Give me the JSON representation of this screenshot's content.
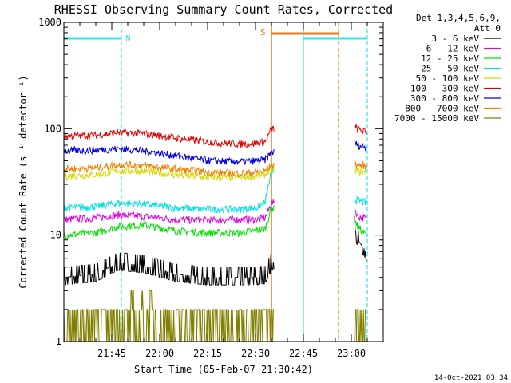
{
  "title": "RHESSI Observing Summary Count Rates, Corrected",
  "footer_date": "14-Oct-2021 03:34",
  "colors": {
    "night_marker": "#33e6ee",
    "saa_marker": "#ee7a14"
  },
  "chart_data": {
    "type": "line",
    "title": "RHESSI Observing Summary Count Rates, Corrected",
    "xlabel": "Start Time (05-Feb-07 21:30:42)",
    "ylabel": "Corrected Count Rate (s⁻¹ detector⁻¹)",
    "y_scale": "log",
    "ylim": [
      1,
      1000
    ],
    "xlim": [
      "21:30",
      "23:10"
    ],
    "x_ticks": [
      "21:45",
      "22:00",
      "22:15",
      "22:30",
      "22:45",
      "23:00"
    ],
    "y_ticks": [
      "1",
      "10",
      "100",
      "1000"
    ],
    "legend_title": "Det 1,3,4,5,6,9,",
    "legend_subtitle": "Att 0",
    "legend_position": "right",
    "flag_labels": {
      "night": "N",
      "saa": "S"
    },
    "data_gap": [
      "22:36",
      "23:01"
    ],
    "events": {
      "night": {
        "start": "21:30",
        "end": "21:48"
      },
      "saa": {
        "start": "22:35",
        "end": "22:56"
      },
      "night2": {
        "start": "22:45",
        "end": "23:05"
      }
    },
    "series": [
      {
        "name": "3 - 6 keV",
        "color": "#000000",
        "x": [
          "21:30",
          "21:40",
          "21:47",
          "21:55",
          "22:05",
          "22:15",
          "22:25",
          "22:30",
          "22:33",
          "22:35",
          "23:01",
          "23:02",
          "23:04",
          "23:05"
        ],
        "values": [
          4,
          4.3,
          5.5,
          5.2,
          4.3,
          4,
          4,
          4,
          4.1,
          5.5,
          12,
          9,
          7.5,
          6.5
        ]
      },
      {
        "name": "6 - 12 keV",
        "color": "#e000e0",
        "x": [
          "21:30",
          "21:40",
          "21:47",
          "21:55",
          "22:05",
          "22:15",
          "22:25",
          "22:30",
          "22:33",
          "22:35",
          "23:01",
          "23:02",
          "23:04",
          "23:05"
        ],
        "values": [
          14,
          14.5,
          15.5,
          15,
          14,
          13.8,
          14,
          14,
          14.5,
          20,
          18,
          15,
          14.5,
          14
        ]
      },
      {
        "name": "12 - 25 keV",
        "color": "#00e000",
        "x": [
          "21:30",
          "21:40",
          "21:47",
          "21:55",
          "22:05",
          "22:15",
          "22:25",
          "22:30",
          "22:33",
          "22:35",
          "23:01",
          "23:02",
          "23:04",
          "23:05"
        ],
        "values": [
          10,
          10.5,
          12,
          12.5,
          11,
          10.5,
          10.5,
          11,
          11.5,
          18,
          14,
          12,
          10.5,
          10
        ]
      },
      {
        "name": "25 - 50 keV",
        "color": "#00e0e0",
        "x": [
          "21:30",
          "21:40",
          "21:47",
          "21:55",
          "22:05",
          "22:15",
          "22:25",
          "22:30",
          "22:33",
          "22:35",
          "23:01",
          "23:02",
          "23:04",
          "23:05"
        ],
        "values": [
          18,
          18.5,
          20,
          19.5,
          18,
          17.5,
          17.5,
          18,
          20,
          40,
          22,
          21,
          20.5,
          20
        ]
      },
      {
        "name": "50 - 100 keV",
        "color": "#d8d800",
        "x": [
          "21:30",
          "21:40",
          "21:47",
          "21:55",
          "22:05",
          "22:15",
          "22:25",
          "22:30",
          "22:33",
          "22:35",
          "23:01",
          "23:02",
          "23:04",
          "23:05"
        ],
        "values": [
          36,
          37,
          40,
          40,
          37,
          35,
          35,
          36,
          37,
          42,
          42,
          40,
          39,
          38
        ]
      },
      {
        "name": "100 - 300 keV",
        "color": "#e00000",
        "x": [
          "21:30",
          "21:40",
          "21:47",
          "21:55",
          "22:05",
          "22:15",
          "22:25",
          "22:30",
          "22:33",
          "22:35",
          "23:01",
          "23:02",
          "23:04",
          "23:05"
        ],
        "values": [
          85,
          87,
          92,
          90,
          82,
          75,
          72,
          73,
          75,
          100,
          105,
          98,
          95,
          90
        ]
      },
      {
        "name": "300 - 800 keV",
        "color": "#0000e0",
        "x": [
          "21:30",
          "21:40",
          "21:47",
          "21:55",
          "22:05",
          "22:15",
          "22:25",
          "22:30",
          "22:33",
          "22:35",
          "23:01",
          "23:02",
          "23:04",
          "23:05"
        ],
        "values": [
          62,
          63,
          65,
          62,
          56,
          50,
          49,
          50,
          51,
          60,
          75,
          70,
          68,
          65
        ]
      },
      {
        "name": "800 - 7000 keV",
        "color": "#f08000",
        "x": [
          "21:30",
          "21:40",
          "21:47",
          "21:55",
          "22:05",
          "22:15",
          "22:25",
          "22:30",
          "22:33",
          "22:35",
          "23:01",
          "23:02",
          "23:04",
          "23:05"
        ],
        "values": [
          42,
          43,
          46,
          45,
          42,
          39,
          38,
          39,
          40,
          45,
          48,
          46,
          45,
          44
        ]
      },
      {
        "name": "7000 - 15000 keV",
        "color": "#808000",
        "x": [
          "21:30",
          "21:40",
          "21:47",
          "21:55",
          "22:05",
          "22:15",
          "22:25",
          "22:30",
          "22:33",
          "22:35",
          "23:01",
          "23:02",
          "23:04",
          "23:05"
        ],
        "values": [
          2,
          2,
          2.5,
          2,
          2,
          2,
          2,
          2,
          2,
          2,
          2,
          2,
          2,
          2
        ]
      }
    ]
  }
}
